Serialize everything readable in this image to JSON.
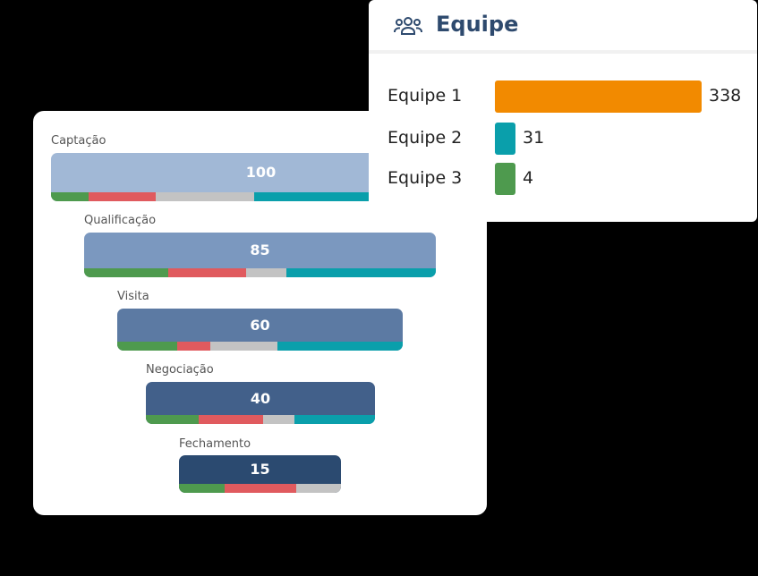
{
  "funnel": {
    "stages": [
      {
        "label": "Captação",
        "value": "100",
        "color": "#a1b8d6",
        "segments": [
          {
            "c": "green",
            "w": 0.09
          },
          {
            "c": "red",
            "w": 0.16
          },
          {
            "c": "gray",
            "w": 0.235
          },
          {
            "c": "teal",
            "w": 0.515
          }
        ]
      },
      {
        "label": "Qualificação",
        "value": "85",
        "color": "#7b98bf",
        "segments": [
          {
            "c": "green",
            "w": 0.24
          },
          {
            "c": "red",
            "w": 0.22
          },
          {
            "c": "gray",
            "w": 0.115
          },
          {
            "c": "teal",
            "w": 0.425
          }
        ]
      },
      {
        "label": "Visita",
        "value": "60",
        "color": "#5c7aa3",
        "segments": [
          {
            "c": "green",
            "w": 0.21
          },
          {
            "c": "red",
            "w": 0.115
          },
          {
            "c": "gray",
            "w": 0.235
          },
          {
            "c": "teal",
            "w": 0.44
          }
        ]
      },
      {
        "label": "Negociação",
        "value": "40",
        "color": "#42608a",
        "segments": [
          {
            "c": "green",
            "w": 0.23
          },
          {
            "c": "red",
            "w": 0.28
          },
          {
            "c": "gray",
            "w": 0.14
          },
          {
            "c": "teal",
            "w": 0.35
          }
        ]
      },
      {
        "label": "Fechamento",
        "value": "15",
        "color": "#2b4a70",
        "segments": [
          {
            "c": "green",
            "w": 0.28
          },
          {
            "c": "red",
            "w": 0.445
          },
          {
            "c": "gray",
            "w": 0.275
          }
        ]
      }
    ]
  },
  "team": {
    "title": "Equipe",
    "icon": "users-icon",
    "rows": [
      {
        "label": "Equipe 1",
        "value": 338,
        "color": "#f28a00"
      },
      {
        "label": "Equipe 2",
        "value": 31,
        "color": "#0a9fab"
      },
      {
        "label": "Equipe 3",
        "value": 4,
        "color": "#4e9a4e"
      }
    ]
  }
}
